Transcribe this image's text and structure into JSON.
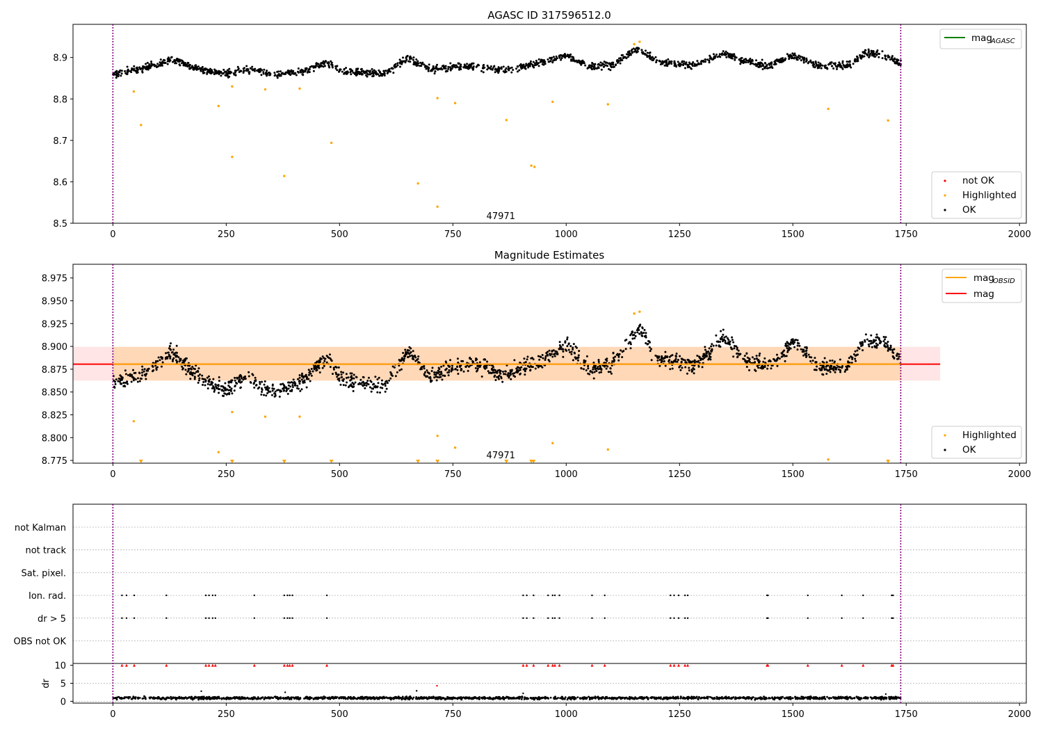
{
  "chart_data": [
    {
      "type": "scatter",
      "title": "AGASC ID 317596512.0",
      "xlim": [
        -88,
        2015
      ],
      "ylim": [
        8.5,
        8.98
      ],
      "xticks": [
        0,
        250,
        500,
        750,
        1000,
        1250,
        1500,
        1750,
        2000
      ],
      "yticks": [
        8.5,
        8.6,
        8.7,
        8.8,
        8.9
      ],
      "obsid_label": "47971",
      "obsid_label_pos": [
        868,
        8.51
      ],
      "vlines_x": [
        0,
        1738
      ],
      "line_legend": [
        {
          "label": "mag",
          "sub": "AGASC",
          "color": "#008000"
        }
      ],
      "scatter_legend": [
        {
          "label": "not OK",
          "color": "#ff0000"
        },
        {
          "label": "Highlighted",
          "color": "#ffa500"
        },
        {
          "label": "OK",
          "color": "#000000"
        }
      ],
      "highlighted_points": [
        [
          46,
          8.818
        ],
        [
          62,
          8.737
        ],
        [
          233,
          8.783
        ],
        [
          263,
          8.66
        ],
        [
          263,
          8.83
        ],
        [
          336,
          8.823
        ],
        [
          378,
          8.614
        ],
        [
          412,
          8.825
        ],
        [
          482,
          8.694
        ],
        [
          673,
          8.596
        ],
        [
          716,
          8.54
        ],
        [
          716,
          8.802
        ],
        [
          755,
          8.79
        ],
        [
          868,
          8.749
        ],
        [
          923,
          8.639
        ],
        [
          930,
          8.636
        ],
        [
          970,
          8.793
        ],
        [
          1092,
          8.787
        ],
        [
          1150,
          8.932
        ],
        [
          1162,
          8.938
        ],
        [
          1578,
          8.776
        ],
        [
          1710,
          8.748
        ]
      ],
      "ok_segments": [
        [
          0,
          8.86
        ],
        [
          60,
          8.872
        ],
        [
          130,
          8.895
        ],
        [
          200,
          8.868
        ],
        [
          250,
          8.86
        ],
        [
          300,
          8.872
        ],
        [
          350,
          8.858
        ],
        [
          420,
          8.866
        ],
        [
          470,
          8.888
        ],
        [
          510,
          8.866
        ],
        [
          600,
          8.862
        ],
        [
          650,
          8.898
        ],
        [
          700,
          8.872
        ],
        [
          800,
          8.88
        ],
        [
          860,
          8.868
        ],
        [
          950,
          8.888
        ],
        [
          1000,
          8.905
        ],
        [
          1050,
          8.878
        ],
        [
          1100,
          8.88
        ],
        [
          1160,
          8.922
        ],
        [
          1200,
          8.89
        ],
        [
          1280,
          8.88
        ],
        [
          1350,
          8.91
        ],
        [
          1400,
          8.888
        ],
        [
          1450,
          8.88
        ],
        [
          1500,
          8.905
        ],
        [
          1560,
          8.88
        ],
        [
          1620,
          8.88
        ],
        [
          1660,
          8.91
        ],
        [
          1700,
          8.905
        ],
        [
          1738,
          8.885
        ]
      ]
    },
    {
      "type": "scatter",
      "title": "Magnitude Estimates",
      "xlim": [
        -88,
        2015
      ],
      "ylim": [
        8.772,
        8.99
      ],
      "xticks": [
        0,
        250,
        500,
        750,
        1000,
        1250,
        1500,
        1750,
        2000
      ],
      "yticks": [
        8.775,
        8.8,
        8.825,
        8.85,
        8.875,
        8.9,
        8.925,
        8.95,
        8.975
      ],
      "ytick_labels": [
        "8.775",
        "8.800",
        "8.825",
        "8.850",
        "8.875",
        "8.900",
        "8.925",
        "8.950",
        "8.975"
      ],
      "obsid_label": "47971",
      "obsid_label_pos": [
        868,
        8.7775
      ],
      "vlines_x": [
        0,
        1738
      ],
      "mag": 8.8805,
      "mag_band": [
        8.8625,
        8.8995
      ],
      "mag_band_x": [
        -88,
        1825
      ],
      "mag_obsid": 8.8805,
      "mag_obsid_band_x": [
        0,
        1738
      ],
      "line_legend": [
        {
          "label": "mag",
          "sub": "OBSID",
          "color": "#ffa500"
        },
        {
          "label": "mag",
          "sub": "",
          "color": "#ff0000"
        }
      ],
      "scatter_legend": [
        {
          "label": "Highlighted",
          "color": "#ffa500"
        },
        {
          "label": "OK",
          "color": "#000000"
        }
      ],
      "highlighted_points": [
        [
          46,
          8.818
        ],
        [
          233,
          8.784
        ],
        [
          263,
          8.828
        ],
        [
          336,
          8.823
        ],
        [
          412,
          8.823
        ],
        [
          716,
          8.802
        ],
        [
          755,
          8.789
        ],
        [
          970,
          8.794
        ],
        [
          1092,
          8.787
        ],
        [
          1150,
          8.936
        ],
        [
          1162,
          8.938
        ],
        [
          1578,
          8.776
        ]
      ],
      "clipped_points_x": [
        62,
        263,
        378,
        482,
        673,
        716,
        868,
        923,
        928,
        1710
      ],
      "ok_segments": [
        [
          0,
          8.86
        ],
        [
          60,
          8.868
        ],
        [
          130,
          8.893
        ],
        [
          200,
          8.862
        ],
        [
          250,
          8.853
        ],
        [
          300,
          8.868
        ],
        [
          350,
          8.848
        ],
        [
          420,
          8.863
        ],
        [
          470,
          8.888
        ],
        [
          510,
          8.862
        ],
        [
          600,
          8.856
        ],
        [
          650,
          8.895
        ],
        [
          700,
          8.868
        ],
        [
          800,
          8.883
        ],
        [
          860,
          8.868
        ],
        [
          950,
          8.885
        ],
        [
          1000,
          8.9
        ],
        [
          1050,
          8.875
        ],
        [
          1100,
          8.88
        ],
        [
          1160,
          8.92
        ],
        [
          1200,
          8.888
        ],
        [
          1280,
          8.878
        ],
        [
          1350,
          8.91
        ],
        [
          1400,
          8.885
        ],
        [
          1450,
          8.878
        ],
        [
          1500,
          8.905
        ],
        [
          1560,
          8.878
        ],
        [
          1620,
          8.878
        ],
        [
          1660,
          8.905
        ],
        [
          1700,
          8.905
        ],
        [
          1738,
          8.883
        ]
      ]
    },
    {
      "type": "scatter",
      "title": "",
      "xlim": [
        -88,
        2015
      ],
      "categories": [
        "not Kalman",
        "not track",
        "Sat. pixel.",
        "Ion. rad.",
        "dr > 5",
        "OBS not OK"
      ],
      "vlines_x": [
        0,
        1738
      ],
      "flag_x": [
        20,
        30,
        47,
        118,
        205,
        212,
        220,
        226,
        312,
        378,
        385,
        390,
        396,
        472,
        905,
        913,
        928,
        960,
        970,
        975,
        985,
        1057,
        1085,
        1230,
        1238,
        1248,
        1262,
        1268,
        1443,
        1445,
        1533,
        1608,
        1655,
        1718,
        1721
      ],
      "flag_rows": [
        "Ion. rad.",
        "dr > 5"
      ],
      "dr_panel": {
        "ylabel": "dr",
        "ylim": [
          -0.5,
          10.5
        ],
        "yticks": [
          0,
          5,
          10
        ],
        "threshold": 10,
        "clipped_x": [
          20,
          30,
          47,
          118,
          205,
          212,
          220,
          226,
          312,
          378,
          385,
          390,
          396,
          472,
          905,
          913,
          928,
          960,
          970,
          975,
          985,
          1057,
          1085,
          1230,
          1238,
          1248,
          1262,
          1268,
          1443,
          1445,
          1533,
          1608,
          1655,
          1718,
          1721
        ],
        "outliers": [
          [
            195,
            2.8
          ],
          [
            380,
            2.5
          ],
          [
            670,
            2.9
          ],
          [
            715,
            4.3
          ],
          [
            905,
            2.2
          ],
          [
            1705,
            2.0
          ]
        ],
        "xticks": [
          0,
          250,
          500,
          750,
          1000,
          1250,
          1500,
          1750,
          2000
        ]
      }
    }
  ]
}
